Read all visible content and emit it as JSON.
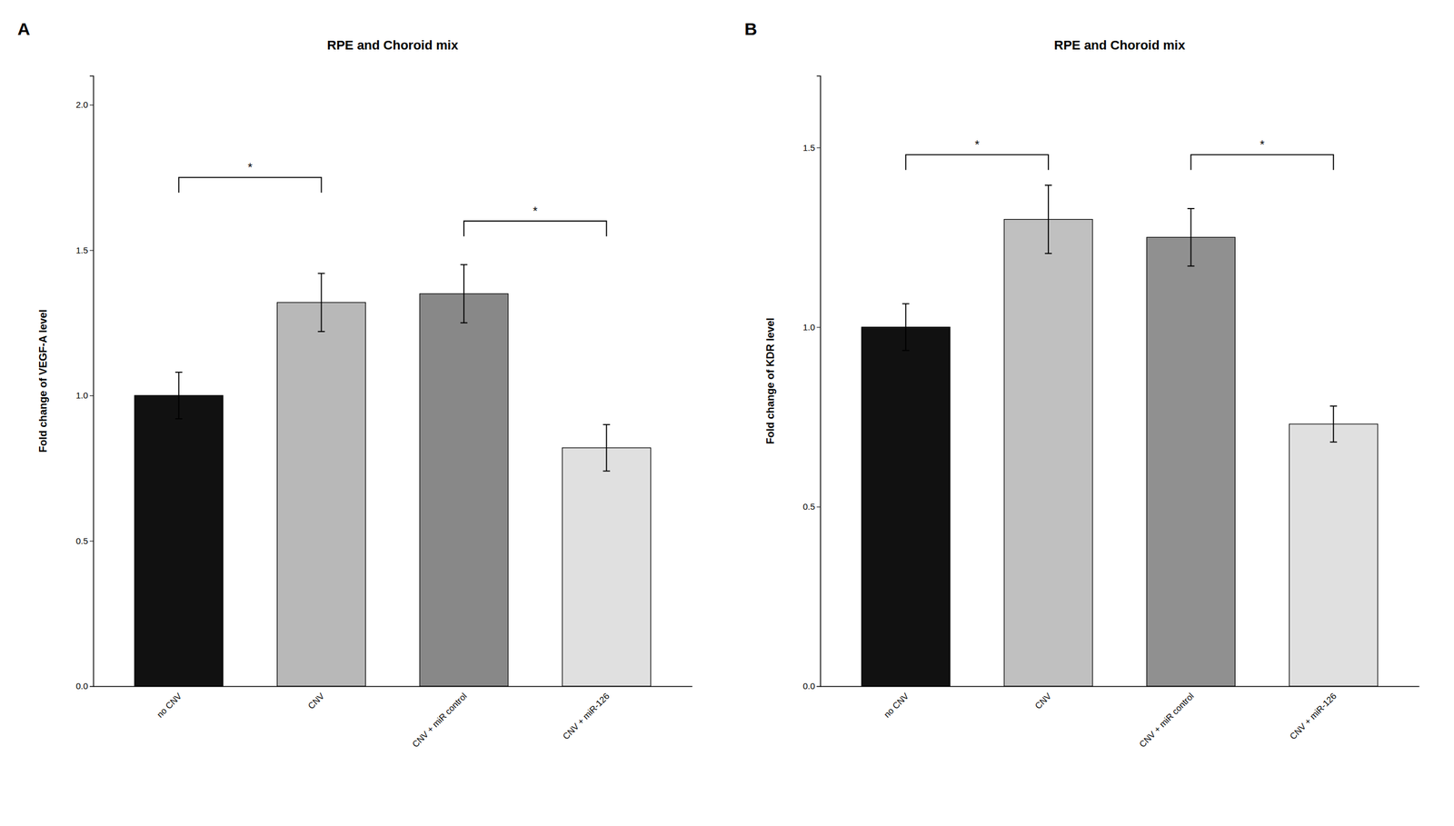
{
  "chart_data": [
    {
      "type": "bar",
      "title": "RPE and Choroid mix",
      "panel_label": "A",
      "ylabel": "Fold change of VEGF-A level",
      "categories": [
        "no CNV",
        "CNV",
        "CNV + miR control",
        "CNV + miR-126"
      ],
      "values": [
        1.0,
        1.32,
        1.35,
        0.82
      ],
      "errors": [
        0.08,
        0.1,
        0.1,
        0.08
      ],
      "colors": [
        "#111111",
        "#b8b8b8",
        "#888888",
        "#e0e0e0"
      ],
      "ylim": [
        0,
        2.1
      ],
      "yticks": [
        {
          "value": 0,
          "label": "0.0"
        },
        0.5,
        {
          "value": 1,
          "label": "1.0"
        },
        1.5,
        {
          "value": 2,
          "label": "2.0"
        }
      ],
      "grid": false,
      "annotations": [
        {
          "text": "*",
          "x1": 0,
          "x2": 1,
          "y": 1.75
        },
        {
          "text": "*",
          "x1": 2,
          "x2": 3,
          "y": 1.6
        }
      ]
    },
    {
      "type": "bar",
      "title": "RPE and Choroid mix",
      "panel_label": "B",
      "ylabel": "Fold change of KDR level",
      "categories": [
        "no CNV",
        "CNV",
        "CNV + miR control",
        "CNV + miR-126"
      ],
      "values": [
        1.0,
        1.3,
        1.25,
        0.73
      ],
      "errors": [
        0.065,
        0.095,
        0.08,
        0.05
      ],
      "colors": [
        "#111111",
        "#c0c0c0",
        "#909090",
        "#e0e0e0"
      ],
      "ylim": [
        0,
        1.7
      ],
      "yticks": [
        {
          "value": 0,
          "label": "0.0"
        },
        0.5,
        {
          "value": 1,
          "label": "1.0"
        },
        1.5
      ],
      "grid": false,
      "annotations": [
        {
          "text": "*",
          "x1": 0,
          "x2": 1,
          "y": 1.48
        },
        {
          "text": "*",
          "x1": 2,
          "x2": 3,
          "y": 1.48
        }
      ]
    }
  ]
}
